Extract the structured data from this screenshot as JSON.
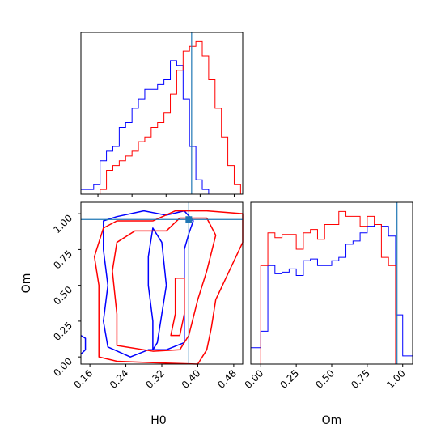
{
  "chart_data": [
    {
      "type": "histogram",
      "panel": "H0 marginal",
      "x_range": [
        0.12,
        0.5
      ],
      "show_y_ticks": false,
      "reference_x": 0.38,
      "bin_edges": [
        0.12,
        0.135,
        0.15,
        0.165,
        0.18,
        0.195,
        0.21,
        0.225,
        0.24,
        0.255,
        0.27,
        0.285,
        0.3,
        0.315,
        0.33,
        0.345,
        0.36,
        0.375,
        0.39,
        0.405,
        0.42,
        0.435,
        0.45,
        0.465,
        0.48,
        0.495
      ],
      "series": [
        {
          "color": "#0000ff",
          "counts": [
            1,
            1,
            2,
            7,
            9,
            10,
            14,
            15,
            18,
            20,
            22,
            22,
            23,
            24,
            28,
            27,
            20,
            10,
            3,
            1,
            0,
            0,
            0,
            0,
            0
          ]
        },
        {
          "color": "#ff0000",
          "counts": [
            0,
            0,
            0,
            1,
            5,
            6,
            7,
            8,
            9,
            11,
            12,
            14,
            15,
            17,
            21,
            26,
            30,
            31,
            32,
            29,
            24,
            18,
            12,
            6,
            2
          ]
        }
      ]
    },
    {
      "type": "contour",
      "panel": "H0 vs Om",
      "xlabel": "H0",
      "ylabel": "Om",
      "x_range": [
        0.14,
        0.5
      ],
      "y_range": [
        -0.05,
        1.08
      ],
      "x_ticks": [
        "0.16",
        "0.24",
        "0.32",
        "0.40",
        "0.48"
      ],
      "y_ticks": [
        "0.00",
        "0.25",
        "0.50",
        "0.75",
        "1.00"
      ],
      "reference_point": [
        0.38,
        0.96
      ],
      "series": [
        {
          "color": "#0000ff",
          "contours": [
            [
              [
                0.14,
                0.02
              ],
              [
                0.15,
                0.05
              ],
              [
                0.15,
                0.13
              ],
              [
                0.14,
                0.15
              ]
            ],
            [
              [
                0.25,
                0.0
              ],
              [
                0.2,
                0.07
              ],
              [
                0.19,
                0.25
              ],
              [
                0.2,
                0.5
              ],
              [
                0.19,
                0.75
              ],
              [
                0.19,
                0.95
              ],
              [
                0.22,
                0.98
              ],
              [
                0.28,
                1.02
              ],
              [
                0.33,
                0.99
              ],
              [
                0.37,
                1.02
              ],
              [
                0.39,
                0.95
              ],
              [
                0.38,
                0.86
              ],
              [
                0.37,
                0.75
              ],
              [
                0.37,
                0.5
              ],
              [
                0.37,
                0.25
              ],
              [
                0.37,
                0.1
              ],
              [
                0.33,
                0.05
              ],
              [
                0.29,
                0.05
              ]
            ],
            [
              [
                0.3,
                0.05
              ],
              [
                0.3,
                0.25
              ],
              [
                0.29,
                0.5
              ],
              [
                0.29,
                0.7
              ],
              [
                0.3,
                0.9
              ],
              [
                0.32,
                0.8
              ],
              [
                0.33,
                0.5
              ],
              [
                0.32,
                0.3
              ],
              [
                0.31,
                0.1
              ]
            ]
          ]
        },
        {
          "color": "#ff0000",
          "contours": [
            [
              [
                0.18,
                0.0
              ],
              [
                0.18,
                0.25
              ],
              [
                0.18,
                0.5
              ],
              [
                0.17,
                0.7
              ],
              [
                0.19,
                0.9
              ],
              [
                0.22,
                0.95
              ],
              [
                0.3,
                0.95
              ],
              [
                0.35,
                1.02
              ],
              [
                0.42,
                1.02
              ],
              [
                0.5,
                1.0
              ],
              [
                0.5,
                0.8
              ],
              [
                0.47,
                0.6
              ],
              [
                0.44,
                0.4
              ],
              [
                0.43,
                0.2
              ],
              [
                0.42,
                0.05
              ],
              [
                0.4,
                -0.05
              ],
              [
                0.3,
                -0.04
              ],
              [
                0.22,
                -0.03
              ]
            ],
            [
              [
                0.22,
                0.08
              ],
              [
                0.22,
                0.3
              ],
              [
                0.21,
                0.6
              ],
              [
                0.22,
                0.8
              ],
              [
                0.26,
                0.88
              ],
              [
                0.33,
                0.88
              ],
              [
                0.36,
                0.97
              ],
              [
                0.42,
                0.97
              ],
              [
                0.44,
                0.85
              ],
              [
                0.42,
                0.6
              ],
              [
                0.4,
                0.4
              ],
              [
                0.38,
                0.15
              ],
              [
                0.36,
                0.05
              ],
              [
                0.3,
                0.04
              ]
            ],
            [
              [
                0.34,
                0.15
              ],
              [
                0.35,
                0.3
              ],
              [
                0.35,
                0.55
              ],
              [
                0.37,
                0.55
              ],
              [
                0.37,
                0.3
              ],
              [
                0.36,
                0.15
              ]
            ]
          ]
        }
      ]
    },
    {
      "type": "histogram",
      "panel": "Om marginal",
      "xlabel": "Om",
      "x_range": [
        -0.07,
        1.07
      ],
      "x_ticks": [
        "0.00",
        "0.25",
        "0.50",
        "0.75",
        "1.00"
      ],
      "show_y_ticks": false,
      "reference_x": 0.96,
      "bin_edges": [
        -0.07,
        0.0,
        0.05,
        0.1,
        0.15,
        0.2,
        0.25,
        0.3,
        0.35,
        0.4,
        0.45,
        0.5,
        0.55,
        0.6,
        0.65,
        0.7,
        0.75,
        0.8,
        0.85,
        0.9,
        0.95,
        1.0,
        1.07
      ],
      "series": [
        {
          "color": "#0000ff",
          "counts": [
            1,
            2,
            6,
            5.5,
            5.6,
            5.8,
            5.4,
            6.3,
            6.4,
            6,
            6,
            6.3,
            6.5,
            7.3,
            7.5,
            8,
            8.4,
            8.5,
            8.4,
            7.8,
            3,
            0.5
          ]
        },
        {
          "color": "#ff0000",
          "counts": [
            0,
            6,
            8,
            7.7,
            7.9,
            7.9,
            7,
            8,
            8.2,
            7.6,
            8.5,
            8.5,
            9.3,
            9,
            9,
            8.4,
            9,
            8.5,
            6.5,
            6,
            0,
            0
          ]
        }
      ]
    }
  ]
}
